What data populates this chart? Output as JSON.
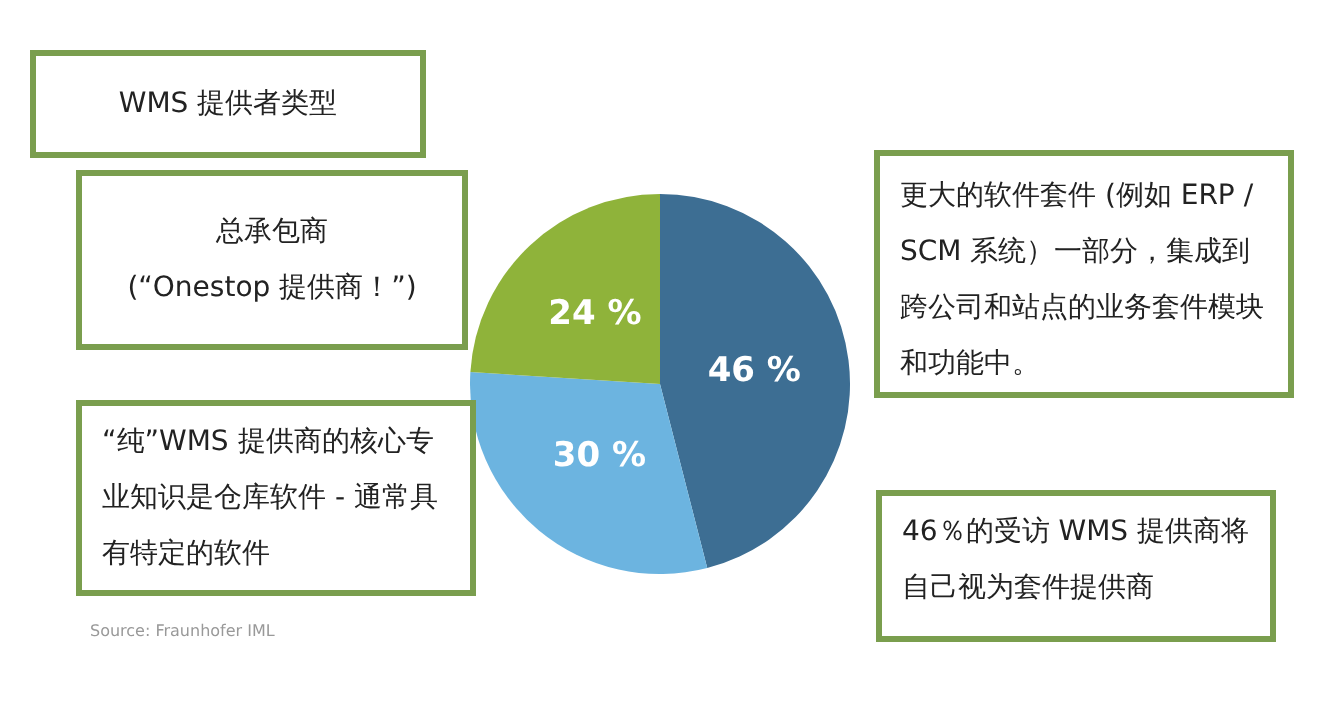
{
  "chart_data": {
    "type": "pie",
    "title": "WMS 提供者类型",
    "categories": [
      "更大的软件套件 (例如 ERP / SCM 系统）一部分，集成到跨公司和站点的业务套件模块和功能中。",
      "“纯”WMS 提供商的核心专业知识是仓库软件 - 通常具有特定的软件",
      "总承包商\n(“Onestop 提供商！”)"
    ],
    "values": [
      46,
      30,
      24
    ],
    "colors": [
      "#3d6e93",
      "#6cb4e0",
      "#8fb33a"
    ],
    "value_labels": [
      "46 %",
      "30 %",
      "24 %"
    ],
    "annotations": [
      "46％的受访 WMS 提供商将自己视为套件提供商",
      "Source: Fraunhofer IML"
    ]
  }
}
